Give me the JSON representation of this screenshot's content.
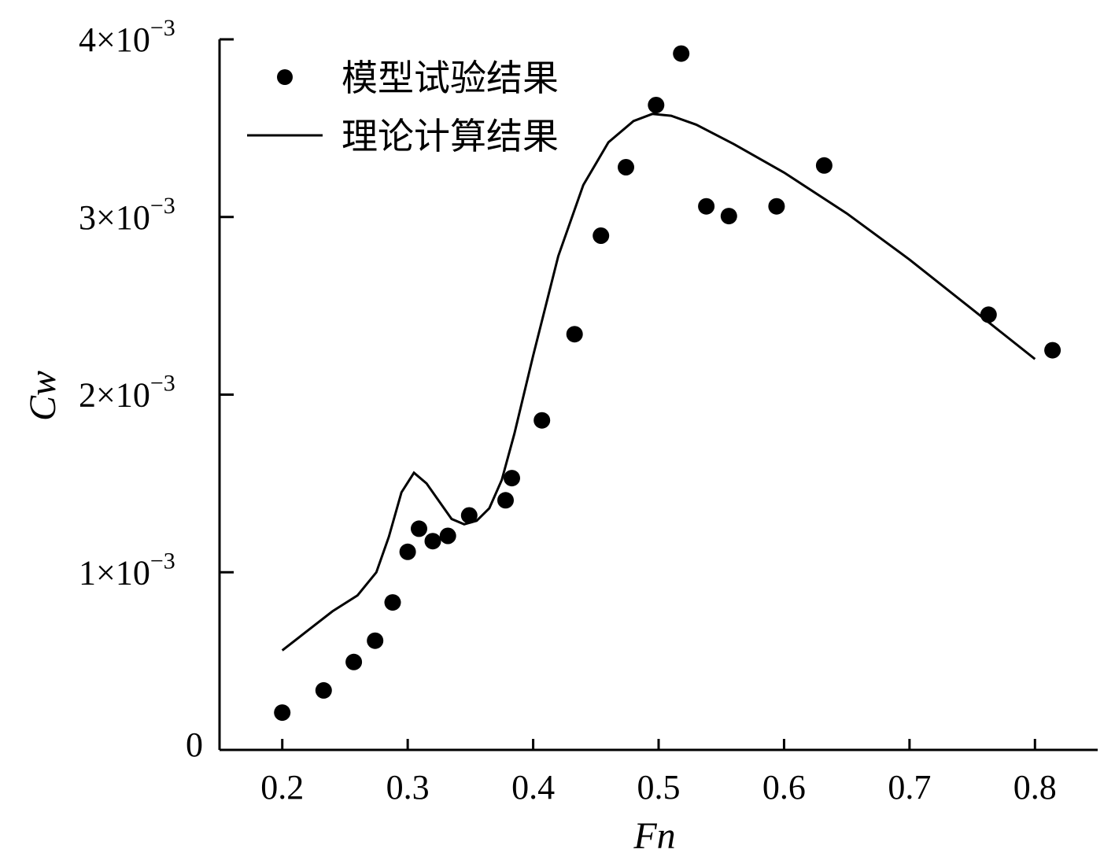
{
  "chart_data": {
    "type": "scatter",
    "xlabel": "Fn",
    "ylabel": "Cw",
    "xlim": [
      0.15,
      0.85
    ],
    "ylim": [
      0,
      0.004
    ],
    "x_ticks": [
      {
        "value": 0.2,
        "label": "0.2"
      },
      {
        "value": 0.3,
        "label": "0.3"
      },
      {
        "value": 0.4,
        "label": "0.4"
      },
      {
        "value": 0.5,
        "label": "0.5"
      },
      {
        "value": 0.6,
        "label": "0.6"
      },
      {
        "value": 0.7,
        "label": "0.7"
      },
      {
        "value": 0.8,
        "label": "0.8"
      }
    ],
    "y_ticks": [
      {
        "value": 0,
        "mantissa": "0",
        "exponent": ""
      },
      {
        "value": 0.001,
        "mantissa": "1×10",
        "exponent": "−3"
      },
      {
        "value": 0.002,
        "mantissa": "2×10",
        "exponent": "−3"
      },
      {
        "value": 0.003,
        "mantissa": "3×10",
        "exponent": "−3"
      },
      {
        "value": 0.004,
        "mantissa": "4×10",
        "exponent": "−3"
      }
    ],
    "grid": false,
    "legend_position": "top-left",
    "series": [
      {
        "name": "模型试验结果",
        "kind": "scatter",
        "color": "#000000",
        "points": [
          [
            0.2,
            0.00021
          ],
          [
            0.233,
            0.000335
          ],
          [
            0.257,
            0.000495
          ],
          [
            0.274,
            0.000615
          ],
          [
            0.288,
            0.00083
          ],
          [
            0.3,
            0.001115
          ],
          [
            0.309,
            0.001245
          ],
          [
            0.32,
            0.001175
          ],
          [
            0.332,
            0.001205
          ],
          [
            0.349,
            0.00132
          ],
          [
            0.378,
            0.001405
          ],
          [
            0.383,
            0.00153
          ],
          [
            0.407,
            0.001855
          ],
          [
            0.433,
            0.00234
          ],
          [
            0.454,
            0.002895
          ],
          [
            0.474,
            0.00328
          ],
          [
            0.498,
            0.00363
          ],
          [
            0.518,
            0.00392
          ],
          [
            0.538,
            0.00306
          ],
          [
            0.556,
            0.003005
          ],
          [
            0.594,
            0.00306
          ],
          [
            0.632,
            0.00329
          ],
          [
            0.763,
            0.00245
          ],
          [
            0.814,
            0.00225
          ]
        ]
      },
      {
        "name": "理论计算结果",
        "kind": "line",
        "color": "#000000",
        "points": [
          [
            0.2,
            0.00056
          ],
          [
            0.22,
            0.00067
          ],
          [
            0.24,
            0.00078
          ],
          [
            0.26,
            0.00087
          ],
          [
            0.275,
            0.001
          ],
          [
            0.285,
            0.0012
          ],
          [
            0.295,
            0.00145
          ],
          [
            0.305,
            0.00156
          ],
          [
            0.315,
            0.0015
          ],
          [
            0.325,
            0.0014
          ],
          [
            0.335,
            0.0013
          ],
          [
            0.345,
            0.00127
          ],
          [
            0.355,
            0.00129
          ],
          [
            0.365,
            0.00136
          ],
          [
            0.375,
            0.00152
          ],
          [
            0.385,
            0.00178
          ],
          [
            0.4,
            0.00222
          ],
          [
            0.42,
            0.00278
          ],
          [
            0.44,
            0.00318
          ],
          [
            0.46,
            0.00342
          ],
          [
            0.48,
            0.00354
          ],
          [
            0.495,
            0.00358
          ],
          [
            0.51,
            0.00357
          ],
          [
            0.53,
            0.00352
          ],
          [
            0.56,
            0.00341
          ],
          [
            0.6,
            0.00325
          ],
          [
            0.65,
            0.00302
          ],
          [
            0.7,
            0.00276
          ],
          [
            0.75,
            0.00248
          ],
          [
            0.8,
            0.0022
          ]
        ]
      }
    ]
  }
}
